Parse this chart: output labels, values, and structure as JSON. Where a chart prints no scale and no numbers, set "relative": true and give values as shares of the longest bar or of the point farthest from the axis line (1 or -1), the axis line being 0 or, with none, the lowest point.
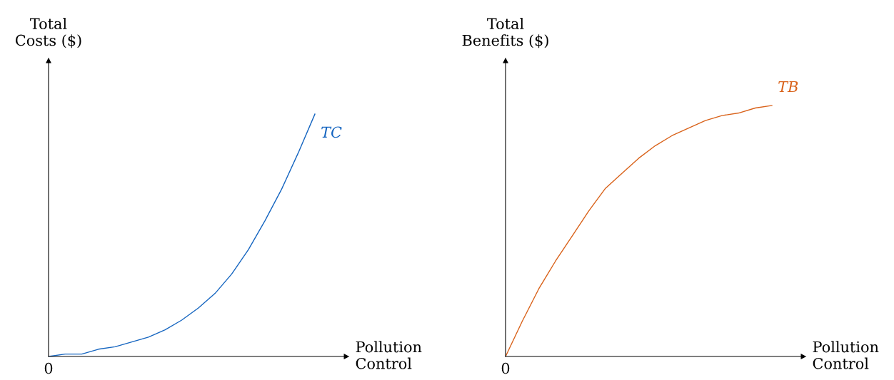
{
  "chart_data": [
    {
      "type": "line",
      "relative": true,
      "xlabel": "Pollution\nControl",
      "ylabel": "Total\nCosts ($)",
      "annotations": [
        "0"
      ],
      "categories": [
        null,
        null,
        null,
        null,
        null,
        null,
        null,
        null,
        null,
        null,
        null,
        null,
        null,
        null,
        null,
        null,
        null
      ],
      "series": [
        {
          "name": "TC",
          "color": "#1565c0",
          "values": [
            0,
            0.01,
            0.01,
            0.03,
            0.04,
            0.06,
            0.08,
            0.11,
            0.15,
            0.2,
            0.26,
            0.34,
            0.44,
            0.56,
            0.69,
            0.84,
            1
          ]
        }
      ]
    },
    {
      "type": "line",
      "relative": true,
      "xlabel": "Pollution\nControl",
      "ylabel": "Total\nBenefits ($)",
      "annotations": [
        "0"
      ],
      "categories": [
        null,
        null,
        null,
        null,
        null,
        null,
        null,
        null,
        null,
        null,
        null,
        null,
        null,
        null,
        null,
        null,
        null
      ],
      "series": [
        {
          "name": "TB",
          "color": "#d9621a",
          "values": [
            0,
            0.14,
            0.27,
            0.38,
            0.48,
            0.58,
            0.67,
            0.73,
            0.79,
            0.84,
            0.88,
            0.91,
            0.94,
            0.96,
            0.97,
            0.99,
            1
          ]
        }
      ]
    }
  ]
}
